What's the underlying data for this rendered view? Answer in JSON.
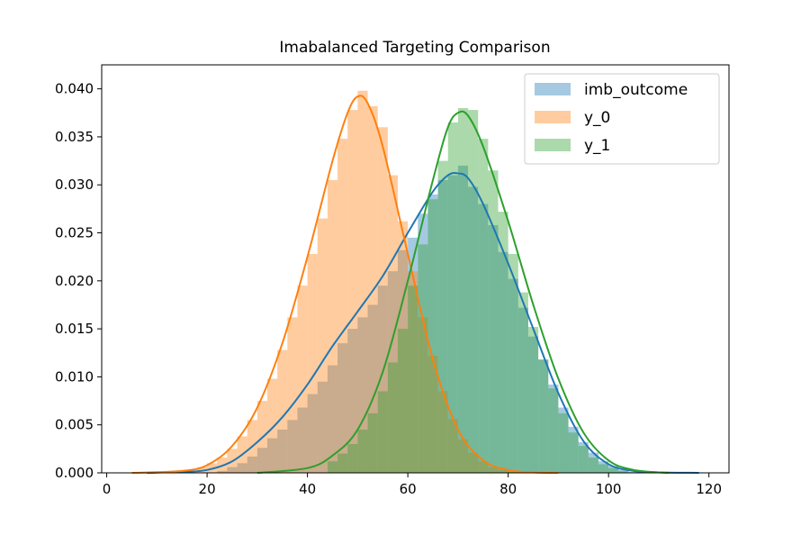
{
  "chart_data": {
    "type": "histogram_kde",
    "title": "Imabalanced Targeting Comparison",
    "xlabel": "",
    "ylabel": "",
    "xlim": [
      -1,
      124
    ],
    "ylim": [
      0,
      0.0425
    ],
    "xticks": [
      0,
      20,
      40,
      60,
      80,
      100,
      120
    ],
    "xtick_labels": [
      "0",
      "20",
      "40",
      "60",
      "80",
      "100",
      "120"
    ],
    "yticks": [
      0.0,
      0.005,
      0.01,
      0.015,
      0.02,
      0.025,
      0.03,
      0.035,
      0.04
    ],
    "ytick_labels": [
      "0.000",
      "0.005",
      "0.010",
      "0.015",
      "0.020",
      "0.025",
      "0.030",
      "0.035",
      "0.040"
    ],
    "legend_position": "top-right",
    "grid": false,
    "series": [
      {
        "name": "imb_outcome",
        "color": "#1f77b4",
        "hist_alpha": 0.4,
        "kde": [
          [
            8,
            0
          ],
          [
            15,
            0.0001
          ],
          [
            20,
            0.0003
          ],
          [
            25,
            0.0012
          ],
          [
            30,
            0.0032
          ],
          [
            35,
            0.0058
          ],
          [
            40,
            0.0092
          ],
          [
            45,
            0.0132
          ],
          [
            50,
            0.0168
          ],
          [
            55,
            0.0205
          ],
          [
            60,
            0.025
          ],
          [
            65,
            0.0293
          ],
          [
            68,
            0.031
          ],
          [
            70,
            0.0312
          ],
          [
            72,
            0.0307
          ],
          [
            75,
            0.028
          ],
          [
            80,
            0.0218
          ],
          [
            85,
            0.015
          ],
          [
            90,
            0.0083
          ],
          [
            95,
            0.0033
          ],
          [
            100,
            0.0009
          ],
          [
            105,
            0.0002
          ],
          [
            110,
            5e-05
          ],
          [
            118,
            0
          ]
        ],
        "hist": [
          [
            22,
            24,
            0.0002
          ],
          [
            24,
            26,
            0.0006
          ],
          [
            26,
            28,
            0.001
          ],
          [
            28,
            30,
            0.0017
          ],
          [
            30,
            32,
            0.0026
          ],
          [
            32,
            34,
            0.0036
          ],
          [
            34,
            36,
            0.0045
          ],
          [
            36,
            38,
            0.0055
          ],
          [
            38,
            40,
            0.0068
          ],
          [
            40,
            42,
            0.0082
          ],
          [
            42,
            44,
            0.0095
          ],
          [
            44,
            46,
            0.0112
          ],
          [
            46,
            48,
            0.0135
          ],
          [
            48,
            50,
            0.015
          ],
          [
            50,
            52,
            0.0162
          ],
          [
            52,
            54,
            0.0175
          ],
          [
            54,
            56,
            0.0195
          ],
          [
            56,
            58,
            0.021
          ],
          [
            58,
            60,
            0.0232
          ],
          [
            60,
            62,
            0.0245
          ],
          [
            62,
            64,
            0.027
          ],
          [
            64,
            66,
            0.029
          ],
          [
            66,
            68,
            0.0305
          ],
          [
            68,
            70,
            0.031
          ],
          [
            70,
            72,
            0.032
          ],
          [
            72,
            74,
            0.0298
          ],
          [
            74,
            76,
            0.028
          ],
          [
            76,
            78,
            0.0258
          ],
          [
            78,
            80,
            0.023
          ],
          [
            80,
            82,
            0.0202
          ],
          [
            82,
            84,
            0.0172
          ],
          [
            84,
            86,
            0.0142
          ],
          [
            86,
            88,
            0.0118
          ],
          [
            88,
            90,
            0.0092
          ],
          [
            90,
            92,
            0.0068
          ],
          [
            92,
            94,
            0.0048
          ],
          [
            94,
            96,
            0.0032
          ],
          [
            96,
            98,
            0.0021
          ],
          [
            98,
            100,
            0.0012
          ],
          [
            100,
            102,
            0.0007
          ],
          [
            102,
            104,
            0.0003
          ],
          [
            104,
            106,
            0.0001
          ]
        ]
      },
      {
        "name": "y_0",
        "color": "#ff7f0e",
        "hist_alpha": 0.4,
        "kde": [
          [
            5,
            0
          ],
          [
            15,
            0.0002
          ],
          [
            20,
            0.0008
          ],
          [
            25,
            0.0028
          ],
          [
            30,
            0.0068
          ],
          [
            35,
            0.0135
          ],
          [
            40,
            0.0225
          ],
          [
            45,
            0.0325
          ],
          [
            48,
            0.0375
          ],
          [
            50,
            0.0392
          ],
          [
            52,
            0.0385
          ],
          [
            55,
            0.034
          ],
          [
            60,
            0.0228
          ],
          [
            65,
            0.0118
          ],
          [
            70,
            0.0045
          ],
          [
            75,
            0.0013
          ],
          [
            80,
            0.0003
          ],
          [
            85,
            5e-05
          ],
          [
            90,
            0
          ]
        ],
        "hist": [
          [
            18,
            20,
            0.0006
          ],
          [
            20,
            22,
            0.001
          ],
          [
            22,
            24,
            0.0016
          ],
          [
            24,
            26,
            0.0025
          ],
          [
            26,
            28,
            0.0038
          ],
          [
            28,
            30,
            0.0055
          ],
          [
            30,
            32,
            0.0075
          ],
          [
            32,
            34,
            0.0098
          ],
          [
            34,
            36,
            0.0128
          ],
          [
            36,
            38,
            0.0162
          ],
          [
            38,
            40,
            0.0195
          ],
          [
            40,
            42,
            0.0228
          ],
          [
            42,
            44,
            0.0265
          ],
          [
            44,
            46,
            0.0305
          ],
          [
            46,
            48,
            0.0348
          ],
          [
            48,
            50,
            0.0378
          ],
          [
            50,
            52,
            0.0398
          ],
          [
            52,
            54,
            0.0382
          ],
          [
            54,
            56,
            0.036
          ],
          [
            56,
            58,
            0.031
          ],
          [
            58,
            60,
            0.0262
          ],
          [
            60,
            62,
            0.021
          ],
          [
            62,
            64,
            0.0162
          ],
          [
            64,
            66,
            0.0122
          ],
          [
            66,
            68,
            0.0085
          ],
          [
            68,
            70,
            0.0056
          ],
          [
            70,
            72,
            0.0035
          ],
          [
            72,
            74,
            0.0021
          ],
          [
            74,
            76,
            0.0012
          ],
          [
            76,
            78,
            0.0006
          ],
          [
            78,
            80,
            0.0003
          ],
          [
            80,
            82,
            0.0001
          ]
        ]
      },
      {
        "name": "y_1",
        "color": "#2ca02c",
        "hist_alpha": 0.4,
        "kde": [
          [
            30,
            0
          ],
          [
            40,
            0.0005
          ],
          [
            45,
            0.0018
          ],
          [
            50,
            0.0045
          ],
          [
            55,
            0.0105
          ],
          [
            60,
            0.02
          ],
          [
            65,
            0.0305
          ],
          [
            68,
            0.036
          ],
          [
            70,
            0.0375
          ],
          [
            72,
            0.0372
          ],
          [
            75,
            0.034
          ],
          [
            80,
            0.0262
          ],
          [
            85,
            0.0175
          ],
          [
            90,
            0.0098
          ],
          [
            95,
            0.0042
          ],
          [
            100,
            0.0013
          ],
          [
            105,
            0.0003
          ],
          [
            112,
            0
          ]
        ],
        "hist": [
          [
            44,
            46,
            0.0012
          ],
          [
            46,
            48,
            0.002
          ],
          [
            48,
            50,
            0.003
          ],
          [
            50,
            52,
            0.0045
          ],
          [
            52,
            54,
            0.0062
          ],
          [
            54,
            56,
            0.0085
          ],
          [
            56,
            58,
            0.0115
          ],
          [
            58,
            60,
            0.015
          ],
          [
            60,
            62,
            0.0195
          ],
          [
            62,
            64,
            0.0238
          ],
          [
            64,
            66,
            0.0285
          ],
          [
            66,
            68,
            0.0325
          ],
          [
            68,
            70,
            0.0365
          ],
          [
            70,
            72,
            0.038
          ],
          [
            72,
            74,
            0.0378
          ],
          [
            74,
            76,
            0.0348
          ],
          [
            76,
            78,
            0.0315
          ],
          [
            78,
            80,
            0.0272
          ],
          [
            80,
            82,
            0.0228
          ],
          [
            82,
            84,
            0.0188
          ],
          [
            84,
            86,
            0.0152
          ],
          [
            86,
            88,
            0.0118
          ],
          [
            88,
            90,
            0.0088
          ],
          [
            90,
            92,
            0.0062
          ],
          [
            92,
            94,
            0.0042
          ],
          [
            94,
            96,
            0.0028
          ],
          [
            96,
            98,
            0.0016
          ],
          [
            98,
            100,
            0.0009
          ],
          [
            100,
            102,
            0.0005
          ],
          [
            102,
            104,
            0.0002
          ]
        ]
      }
    ]
  }
}
